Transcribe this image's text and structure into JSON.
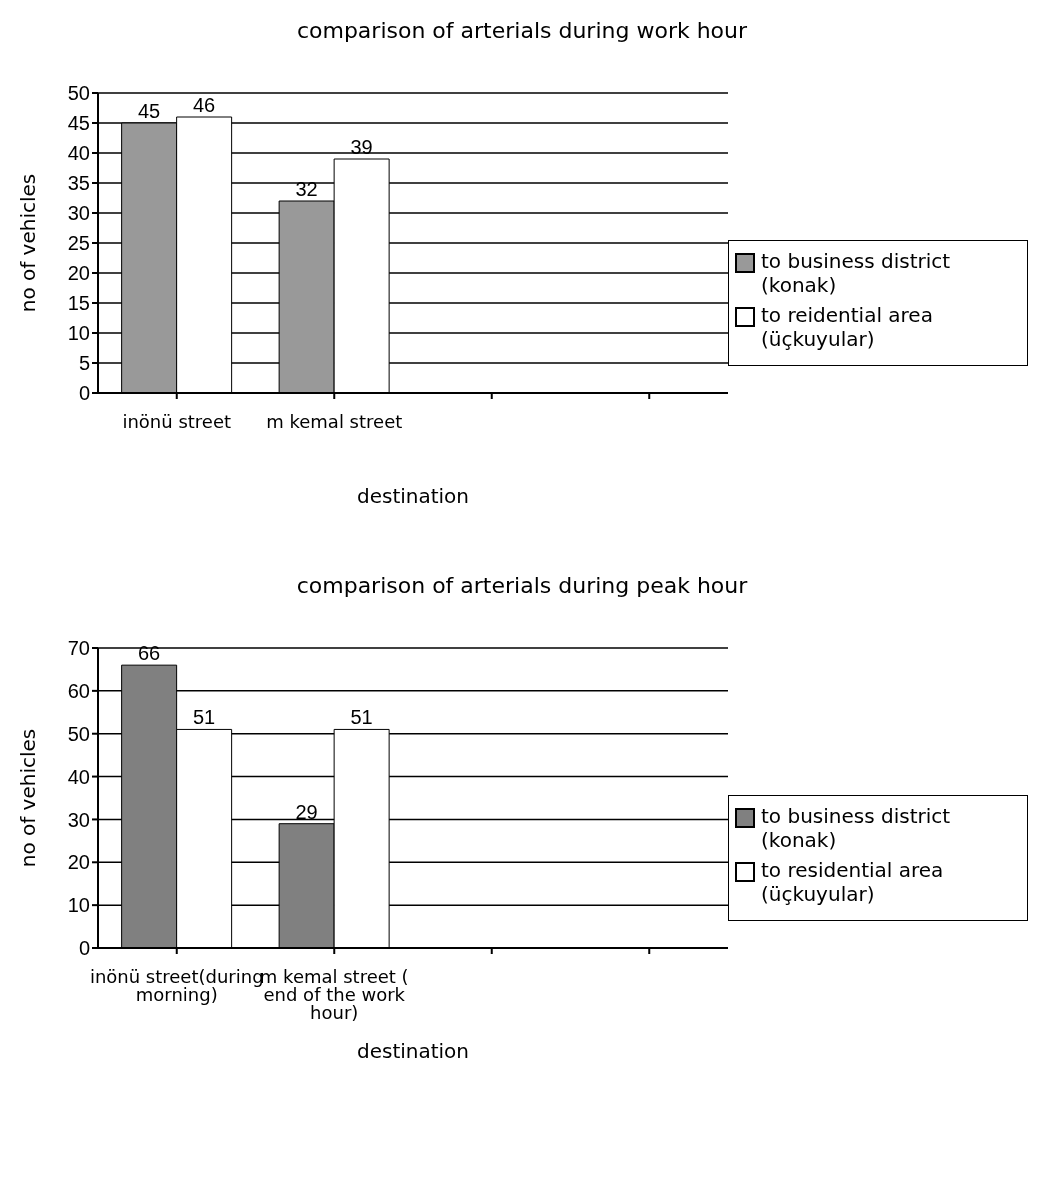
{
  "chart_data": [
    {
      "type": "bar",
      "title": "comparison of arterials during work hour",
      "xlabel": "destination",
      "ylabel": "no of vehicles",
      "categories": [
        "inönü street",
        "m kemal street",
        null,
        null
      ],
      "series": [
        {
          "name": "to business district (konak)",
          "color": "#999999",
          "values": [
            45,
            32,
            null,
            null
          ]
        },
        {
          "name": "to reidential area (üçkuyular)",
          "color": "#ffffff",
          "values": [
            46,
            39,
            null,
            null
          ]
        }
      ],
      "ylim": [
        0,
        50
      ],
      "yticks": [
        0,
        5,
        10,
        15,
        20,
        25,
        30,
        35,
        40,
        45,
        50
      ],
      "grid": "y",
      "legend": "right",
      "data_labels": true
    },
    {
      "type": "bar",
      "title": "comparison of arterials during peak hour",
      "xlabel": "destination",
      "ylabel": "no of vehicles",
      "categories": [
        "inönü street(during morning)",
        "m kemal street ( end of the work hour)",
        null,
        null
      ],
      "series": [
        {
          "name": "to business district (konak)",
          "color": "#808080",
          "values": [
            66,
            29,
            null,
            null
          ]
        },
        {
          "name": "to residential area (üçkuyular)",
          "color": "#ffffff",
          "values": [
            51,
            51,
            null,
            null
          ]
        }
      ],
      "ylim": [
        0,
        70
      ],
      "yticks": [
        0,
        10,
        20,
        30,
        40,
        50,
        60,
        70
      ],
      "grid": "y",
      "legend": "right",
      "data_labels": true
    }
  ]
}
